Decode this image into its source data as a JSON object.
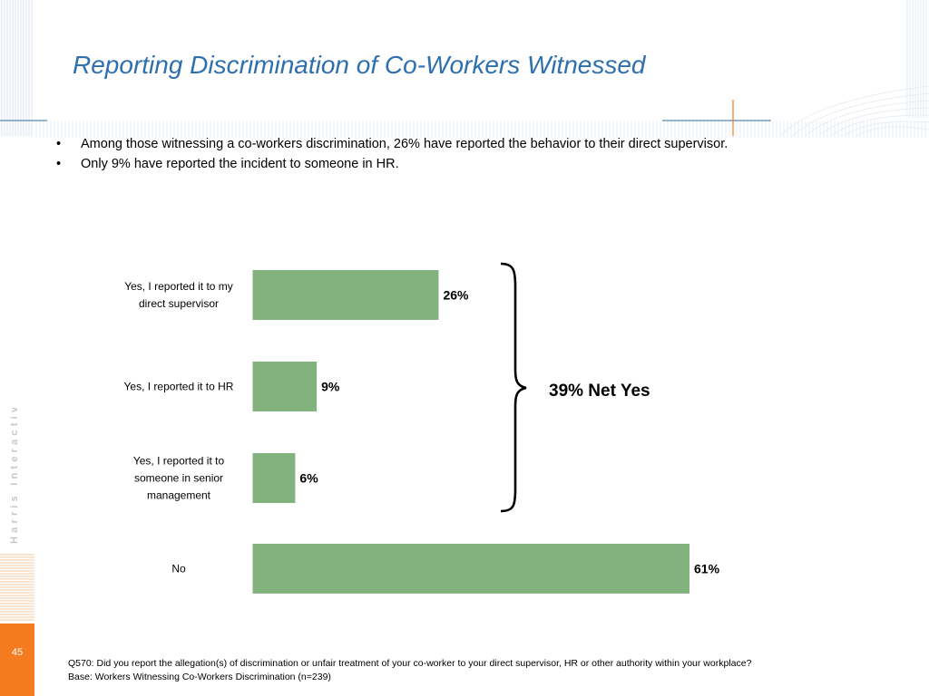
{
  "slide": {
    "title": "Reporting Discrimination of Co-Workers Witnessed",
    "page_number": "45",
    "brand": "Harris Interactive",
    "accent_color": "#f47b20",
    "title_color": "#2e6fad"
  },
  "bullets": [
    "Among those witnessing a co-workers discrimination, 26% have reported the behavior to their direct supervisor.",
    "Only 9% have reported the incident to someone in HR."
  ],
  "chart_data": {
    "type": "bar",
    "orientation": "horizontal",
    "categories": [
      [
        "Yes, I reported it to my",
        "direct supervisor"
      ],
      [
        "Yes, I reported it to HR"
      ],
      [
        "Yes, I reported it to",
        "someone in senior",
        "management"
      ],
      [
        "No"
      ]
    ],
    "values": [
      26,
      9,
      6,
      61
    ],
    "value_labels": [
      "26%",
      "9%",
      "6%",
      "61%"
    ],
    "bar_color": "#82b37e",
    "xlim": [
      0,
      61
    ],
    "grid": false,
    "annotation": "39% Net Yes"
  },
  "footnote": {
    "question": "Q570: Did you report the allegation(s) of discrimination or unfair treatment of your co-worker to your direct supervisor, HR or other authority within your workplace?",
    "base": "Base: Workers Witnessing Co-Workers Discrimination (n=239)"
  }
}
